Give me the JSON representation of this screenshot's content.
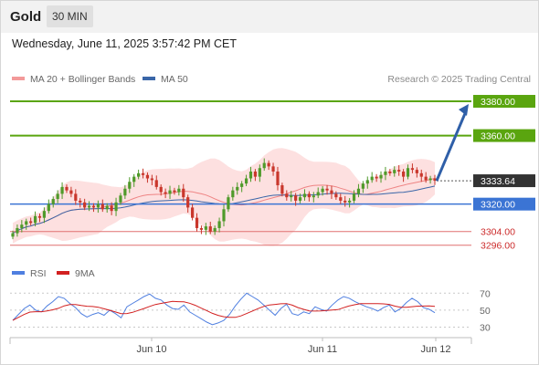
{
  "header": {
    "symbol": "Gold",
    "timeframe": "30 MIN"
  },
  "timestamp": "Wednesday, June 11, 2025 3:57:42 PM CET",
  "legend": {
    "ma20_bb": "MA 20 + Bollinger Bands",
    "ma50": "MA 50",
    "rsi": "RSI",
    "ma9": "9MA",
    "copyright": "Research © 2025 Trading Central"
  },
  "colors": {
    "resistance": "#5aa50f",
    "support": "#3b74d4",
    "target_support": "#e07070",
    "current": "#333333",
    "candle_up": "#4f9a2a",
    "candle_down": "#c9372c",
    "bollinger_fill": "#fde0e0",
    "ma20": "#e85c5c",
    "ma50": "#3a66a8",
    "rsi": "#4f7fe0",
    "rsi_ma": "#d22020",
    "arrow": "#2f5fa8"
  },
  "chart_data": {
    "type": "candlestick",
    "ylim": [
      3290,
      3388
    ],
    "x_ticks": [
      "Jun 10",
      "Jun 11",
      "Jun 12"
    ],
    "levels": [
      {
        "value": 3380.0,
        "label": "3380.00",
        "kind": "resistance"
      },
      {
        "value": 3360.0,
        "label": "3360.00",
        "kind": "resistance"
      },
      {
        "value": 3333.64,
        "label": "3333.64",
        "kind": "current"
      },
      {
        "value": 3320.0,
        "label": "3320.00",
        "kind": "pivot"
      },
      {
        "value": 3304.0,
        "label": "3304.00",
        "kind": "support"
      },
      {
        "value": 3296.0,
        "label": "3296.00",
        "kind": "support"
      }
    ],
    "close_series": [
      3303,
      3306,
      3308,
      3310,
      3309,
      3313,
      3312,
      3316,
      3320,
      3323,
      3326,
      3330,
      3328,
      3326,
      3322,
      3321,
      3318,
      3319,
      3318,
      3320,
      3317,
      3319,
      3316,
      3321,
      3325,
      3329,
      3333,
      3336,
      3338,
      3337,
      3335,
      3334,
      3330,
      3327,
      3326,
      3328,
      3327,
      3329,
      3324,
      3318,
      3312,
      3306,
      3305,
      3307,
      3304,
      3306,
      3310,
      3317,
      3324,
      3328,
      3330,
      3332,
      3335,
      3339,
      3336,
      3341,
      3344,
      3342,
      3339,
      3331,
      3326,
      3324,
      3325,
      3322,
      3324,
      3326,
      3324,
      3325,
      3327,
      3329,
      3328,
      3326,
      3324,
      3322,
      3321,
      3322,
      3326,
      3329,
      3332,
      3334,
      3336,
      3335,
      3337,
      3339,
      3338,
      3340,
      3339,
      3336,
      3341,
      3340,
      3338,
      3336,
      3334,
      3335,
      3333.64
    ],
    "rsi": {
      "yticks": [
        70,
        50,
        30
      ],
      "ylim": [
        22,
        80
      ],
      "values": [
        38,
        45,
        52,
        56,
        50,
        48,
        55,
        60,
        66,
        64,
        58,
        53,
        46,
        42,
        45,
        47,
        44,
        50,
        46,
        41,
        54,
        58,
        62,
        66,
        69,
        64,
        62,
        56,
        52,
        51,
        56,
        48,
        44,
        40,
        36,
        33,
        35,
        38,
        45,
        55,
        63,
        70,
        66,
        62,
        56,
        50,
        44,
        52,
        57,
        46,
        44,
        48,
        46,
        54,
        51,
        49,
        56,
        62,
        66,
        64,
        60,
        57,
        54,
        52,
        49,
        53,
        56,
        48,
        52,
        59,
        64,
        60,
        53,
        51,
        47
      ]
    }
  }
}
